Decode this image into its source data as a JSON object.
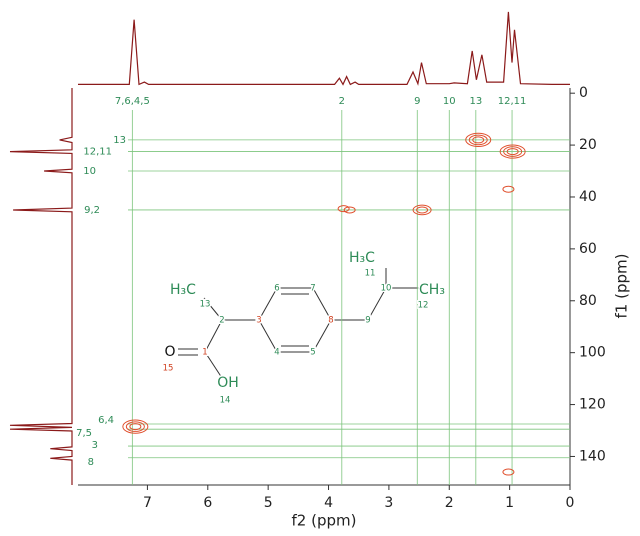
{
  "chart_data": {
    "type": "hsqc",
    "x_label": "f2 (ppm)",
    "y_label": "f1 (ppm)",
    "xlim": [
      8.15,
      0
    ],
    "ylim": [
      -2,
      151
    ],
    "xticks": [
      7,
      6,
      5,
      4,
      3,
      2,
      1,
      0
    ],
    "yticks": [
      0,
      20,
      40,
      60,
      80,
      100,
      120,
      140
    ],
    "trace_color": "#8b1a1a",
    "contour_color": "#e0502e",
    "guide_color": "#7cc47c",
    "proton_trace": {
      "x": [
        8.15,
        7.3,
        7.22,
        7.14,
        7.05,
        6.98,
        3.9,
        3.82,
        3.76,
        3.7,
        3.64,
        3.56,
        3.5,
        2.7,
        2.6,
        2.52,
        2.46,
        2.38,
        2.0,
        1.92,
        1.7,
        1.62,
        1.55,
        1.46,
        1.38,
        1.1,
        1.02,
        0.96,
        0.92,
        0.82,
        0.3,
        0
      ],
      "values": [
        2,
        2,
        85,
        2,
        5,
        2,
        2,
        10,
        2,
        12,
        2,
        5,
        2,
        2,
        18,
        3,
        30,
        3,
        3,
        4,
        3,
        45,
        8,
        40,
        5,
        5,
        95,
        30,
        72,
        3,
        2,
        2
      ]
    },
    "carbon_trace": {
      "y": [
        -2,
        17,
        18,
        19,
        21.8,
        22.5,
        23.2,
        29.3,
        30,
        30.7,
        44.3,
        45,
        45.7,
        127.3,
        128,
        128.8,
        129.5,
        130.2,
        136.3,
        137,
        137.7,
        140,
        140.7,
        141.4,
        151
      ],
      "values": [
        0,
        0,
        20,
        0,
        0,
        100,
        0,
        0,
        45,
        0,
        0,
        95,
        0,
        0,
        100,
        0,
        100,
        0,
        0,
        35,
        0,
        0,
        35,
        0,
        0
      ]
    },
    "peaks": {
      "x": [
        7.2,
        1.52,
        0.95,
        2.45,
        3.75,
        3.65,
        1.02,
        1.02
      ],
      "y": [
        128.5,
        18,
        22.5,
        45,
        44.5,
        45,
        37,
        146
      ],
      "levels": [
        3,
        3,
        3,
        2,
        1,
        1,
        1,
        1
      ]
    },
    "h_guides": {
      "labels": [
        "13",
        "12,11",
        "10",
        "9,2",
        "6,4",
        "7,5",
        "3",
        "8"
      ],
      "values": [
        18,
        22.5,
        30,
        45,
        127.5,
        129.5,
        136,
        140.5
      ]
    },
    "v_guides": {
      "labels": [
        "7,6,4,5",
        "2",
        "9",
        "10",
        "13",
        "12,11"
      ],
      "values": [
        7.25,
        3.78,
        2.53,
        2.0,
        1.56,
        0.96
      ]
    },
    "structure": {
      "labels": [
        "H₃C",
        "13",
        "2",
        "3",
        "6",
        "7",
        "4",
        "5",
        "8",
        "9",
        "10",
        "H₃C",
        "11",
        "CH₃",
        "12",
        "1",
        "O",
        "15",
        "OH",
        "14"
      ]
    }
  }
}
